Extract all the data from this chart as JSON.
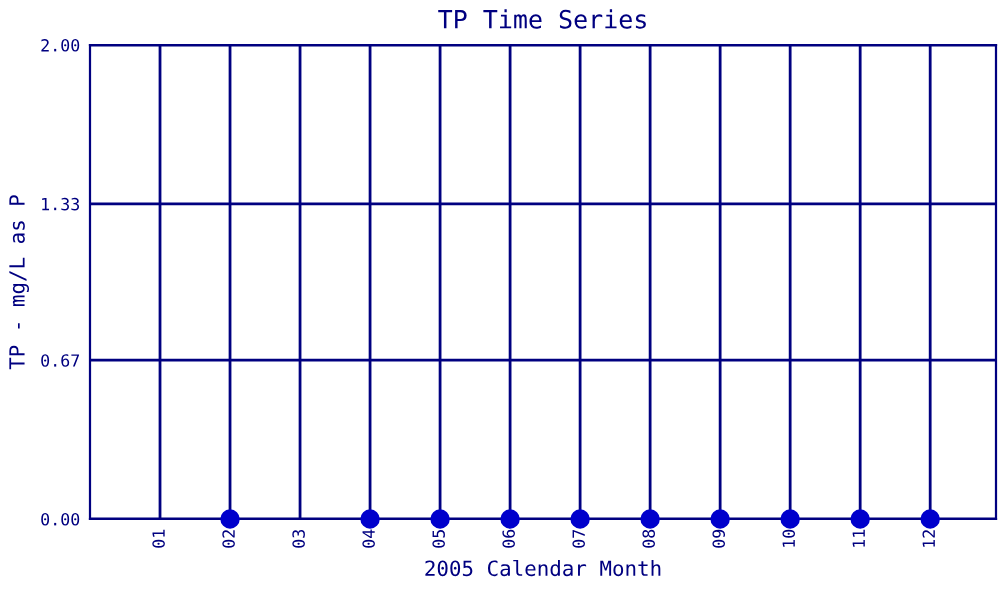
{
  "chart_data": {
    "type": "scatter",
    "title": "TP Time Series",
    "xlabel": "2005 Calendar Month",
    "ylabel": "TP - mg/L as P",
    "categories": [
      "01",
      "02",
      "03",
      "04",
      "05",
      "06",
      "07",
      "08",
      "09",
      "10",
      "11",
      "12"
    ],
    "series": [
      {
        "color": "#0000cc",
        "values": [
          null,
          0,
          null,
          0,
          0,
          0,
          0,
          0,
          0,
          0,
          0,
          0
        ]
      }
    ],
    "ylim": [
      0,
      2
    ],
    "yticks": [
      {
        "value": 0,
        "label": "0.00"
      },
      {
        "value": 0.67,
        "label": "0.67"
      },
      {
        "value": 1.33,
        "label": "1.33"
      },
      {
        "value": 2,
        "label": "2.00"
      }
    ],
    "grid": true,
    "marker": "circle",
    "legend": false
  }
}
